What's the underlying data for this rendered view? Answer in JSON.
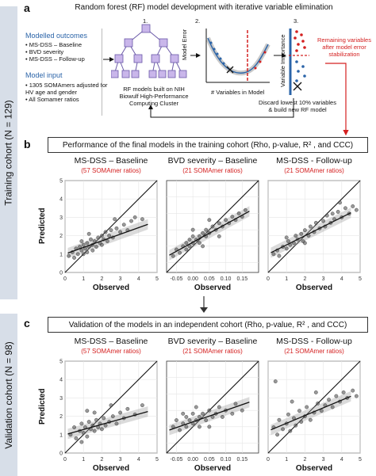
{
  "panel_a": {
    "letter": "a",
    "title": "Random forest (RF) model development with iterative variable elimination",
    "outcomes_heading": "Modelled outcomes",
    "outcomes": [
      "MS-DSS – Baseline",
      "BVD severity",
      "MS-DSS – Follow-up"
    ],
    "input_heading": "Model input",
    "inputs": [
      "1305 SOMAmers adjusted for HV age and gender",
      "All Somamer ratios"
    ],
    "step1_num": "1.",
    "step1_caption": "RF models built on NIH Biowulf High-Performance Computing Cluster",
    "step2_num": "2.",
    "step2_ylabel": "Model Error",
    "step2_xlabel": "# Variables in Model",
    "step3_num": "3.",
    "step3_ylabel": "Variable Importance",
    "step3_note": "Remaining variables after model error stabilization",
    "discard_note": "Discard lowest 10% variables & build new RF model",
    "colors": {
      "blue_text": "#2b64a8",
      "red": "#d42020",
      "node": "#c9b6ea",
      "node_border": "#6b5aa8"
    }
  },
  "training_cohort_label": "Training cohort (N = 129)",
  "validation_cohort_label": "Validation cohort (N = 98)",
  "panel_b": {
    "letter": "b",
    "title": "Performance of the final models in the training cohort (Rho, p-value, R² , and CCC)"
  },
  "panel_c": {
    "letter": "c",
    "title": "Validation of the models in an independent cohort (Rho, p-value, R² , and CCC)"
  },
  "axis_labels": {
    "predicted": "Predicted",
    "observed": "Observed"
  },
  "plots": {
    "b1": {
      "title": "MS-DSS – Baseline",
      "sub": "(57 SOMAmer ratios)",
      "rho": "Rho = 0.767 (p<2.2x10⁻¹⁶)",
      "r2": "R² = 0.618",
      "ccc": "CCC = 0.662"
    },
    "b2": {
      "title": "BVD severity – Baseline",
      "sub": "(21 SOMAmer ratios)",
      "rho": "Rho = 0.778 (p<2.2x10⁻¹⁶)",
      "r2": "R² = 0.597",
      "ccc": "CCC = 0.675"
    },
    "b3": {
      "title": "MS-DSS - Follow-up",
      "sub": "(21 SOMAmer ratios)",
      "rho": "Rho = 0.781 (p<2.2x10⁻¹⁶)",
      "r2": "R² = 0.634",
      "ccc": "CCC = 0.719"
    },
    "c1": {
      "title": "MS-DSS – Baseline",
      "sub": "(57 SOMAmer ratios)",
      "rho": "Rho = 0.395 (p=6.5x10⁻⁵)",
      "r2": "R² = 0.166",
      "ccc": "CCC = 0.306"
    },
    "c2": {
      "title": "BVD severity – Baseline",
      "sub": "(21 SOMAmer ratios)",
      "rho": "Rho = 0.470 (p=1.1x10⁻⁵)",
      "r2": "R² = 0.219",
      "ccc": "CCC = 0.400"
    },
    "c3": {
      "title": "MS-DSS - Follow-up",
      "sub": "(21 SOMAmer ratios)",
      "rho": "Rho = 0.505 (p=2.4x10⁻⁷)",
      "r2": "R² = 0.264",
      "ccc": "CCC = 0.430"
    }
  },
  "chart_data": [
    {
      "id": "b1",
      "type": "scatter",
      "title": "MS-DSS – Baseline",
      "xlabel": "Observed",
      "ylabel": "Predicted",
      "xlim": [
        0,
        5
      ],
      "ylim": [
        0,
        5
      ],
      "xticks": [
        "0",
        "1",
        "2",
        "3",
        "4",
        "5"
      ],
      "yticks": [
        "0",
        "1",
        "2",
        "3",
        "4",
        "5"
      ],
      "identity_line": true,
      "fit": {
        "intercept": 1.0,
        "slope": 0.36
      },
      "points": [
        [
          0.2,
          0.9
        ],
        [
          0.4,
          1.1
        ],
        [
          0.5,
          0.8
        ],
        [
          0.6,
          1.3
        ],
        [
          0.7,
          1.0
        ],
        [
          0.8,
          1.4
        ],
        [
          0.9,
          1.2
        ],
        [
          1.0,
          1.5
        ],
        [
          1.0,
          1.0
        ],
        [
          1.1,
          1.3
        ],
        [
          1.2,
          1.6
        ],
        [
          1.2,
          1.1
        ],
        [
          1.3,
          1.4
        ],
        [
          1.4,
          1.8
        ],
        [
          1.5,
          1.5
        ],
        [
          1.5,
          1.2
        ],
        [
          1.6,
          1.7
        ],
        [
          1.7,
          1.4
        ],
        [
          1.8,
          1.9
        ],
        [
          1.9,
          1.6
        ],
        [
          2.0,
          2.0
        ],
        [
          2.0,
          1.5
        ],
        [
          2.1,
          1.8
        ],
        [
          2.2,
          2.2
        ],
        [
          2.3,
          1.7
        ],
        [
          2.4,
          2.0
        ],
        [
          2.5,
          2.3
        ],
        [
          2.6,
          1.9
        ],
        [
          2.8,
          2.4
        ],
        [
          3.0,
          2.2
        ],
        [
          3.2,
          2.6
        ],
        [
          3.4,
          2.3
        ],
        [
          3.6,
          2.8
        ],
        [
          3.8,
          3.0
        ],
        [
          4.2,
          2.9
        ],
        [
          1.3,
          2.1
        ],
        [
          0.9,
          1.7
        ],
        [
          2.7,
          2.9
        ]
      ]
    },
    {
      "id": "b2",
      "type": "scatter",
      "title": "BVD severity – Baseline",
      "xlabel": "Observed",
      "ylabel": "",
      "xlim": [
        -0.08,
        0.2
      ],
      "ylim": [
        -0.08,
        0.2
      ],
      "xticks": [
        "-0.05",
        "0.00",
        "0.05",
        "0.10",
        "0.15"
      ],
      "yticks": [],
      "identity_line": true,
      "fit": {
        "intercept": 0.012,
        "slope": 0.55
      },
      "points": [
        [
          -0.06,
          -0.03
        ],
        [
          -0.05,
          -0.01
        ],
        [
          -0.04,
          -0.02
        ],
        [
          -0.03,
          0.0
        ],
        [
          -0.02,
          0.01
        ],
        [
          -0.02,
          -0.01
        ],
        [
          -0.01,
          0.02
        ],
        [
          0.0,
          0.01
        ],
        [
          0.0,
          0.03
        ],
        [
          0.01,
          0.02
        ],
        [
          0.02,
          0.03
        ],
        [
          0.02,
          0.01
        ],
        [
          0.03,
          0.04
        ],
        [
          0.04,
          0.03
        ],
        [
          0.04,
          0.05
        ],
        [
          0.05,
          0.04
        ],
        [
          0.06,
          0.06
        ],
        [
          0.07,
          0.05
        ],
        [
          0.08,
          0.07
        ],
        [
          0.09,
          0.06
        ],
        [
          0.1,
          0.08
        ],
        [
          0.11,
          0.07
        ],
        [
          0.12,
          0.09
        ],
        [
          0.13,
          0.08
        ],
        [
          0.14,
          0.1
        ],
        [
          0.15,
          0.09
        ],
        [
          0.16,
          0.11
        ],
        [
          0.05,
          0.08
        ],
        [
          0.0,
          0.05
        ],
        [
          0.08,
          0.03
        ],
        [
          -0.01,
          0.0
        ],
        [
          0.03,
          0.0
        ]
      ]
    },
    {
      "id": "b3",
      "type": "scatter",
      "title": "MS-DSS - Follow-up",
      "xlabel": "Observed",
      "ylabel": "",
      "xlim": [
        0,
        5
      ],
      "ylim": [
        0,
        5
      ],
      "xticks": [
        "0",
        "1",
        "2",
        "3",
        "4",
        "5"
      ],
      "yticks": [],
      "identity_line": true,
      "fit": {
        "intercept": 1.0,
        "slope": 0.5
      },
      "points": [
        [
          0.3,
          1.0
        ],
        [
          0.5,
          1.2
        ],
        [
          0.6,
          0.9
        ],
        [
          0.8,
          1.4
        ],
        [
          1.0,
          1.3
        ],
        [
          1.1,
          1.7
        ],
        [
          1.2,
          1.5
        ],
        [
          1.4,
          1.6
        ],
        [
          1.5,
          2.0
        ],
        [
          1.6,
          1.8
        ],
        [
          1.8,
          2.1
        ],
        [
          1.9,
          1.7
        ],
        [
          2.0,
          2.3
        ],
        [
          2.2,
          2.0
        ],
        [
          2.3,
          2.5
        ],
        [
          2.5,
          2.2
        ],
        [
          2.6,
          2.7
        ],
        [
          2.8,
          2.4
        ],
        [
          3.0,
          2.8
        ],
        [
          3.1,
          2.5
        ],
        [
          3.2,
          3.1
        ],
        [
          3.4,
          2.7
        ],
        [
          3.5,
          3.2
        ],
        [
          3.6,
          2.9
        ],
        [
          3.8,
          3.3
        ],
        [
          4.0,
          3.0
        ],
        [
          4.2,
          3.5
        ],
        [
          4.4,
          3.2
        ],
        [
          4.6,
          3.6
        ],
        [
          4.8,
          3.4
        ],
        [
          2.0,
          1.6
        ],
        [
          1.0,
          1.9
        ],
        [
          3.9,
          3.8
        ]
      ]
    },
    {
      "id": "c1",
      "type": "scatter",
      "title": "MS-DSS – Baseline",
      "xlabel": "Observed",
      "ylabel": "Predicted",
      "xlim": [
        0,
        5
      ],
      "ylim": [
        0,
        5
      ],
      "xticks": [
        "0",
        "1",
        "2",
        "3",
        "4",
        "5"
      ],
      "yticks": [
        "0",
        "1",
        "2",
        "3",
        "4",
        "5"
      ],
      "identity_line": true,
      "fit": {
        "intercept": 1.0,
        "slope": 0.28
      },
      "points": [
        [
          0.3,
          1.0
        ],
        [
          0.5,
          1.4
        ],
        [
          0.6,
          0.8
        ],
        [
          0.8,
          1.2
        ],
        [
          0.9,
          1.6
        ],
        [
          1.0,
          1.1
        ],
        [
          1.1,
          1.4
        ],
        [
          1.2,
          0.9
        ],
        [
          1.3,
          1.7
        ],
        [
          1.4,
          1.3
        ],
        [
          1.5,
          1.5
        ],
        [
          1.6,
          1.2
        ],
        [
          1.7,
          1.8
        ],
        [
          1.8,
          1.4
        ],
        [
          1.9,
          1.6
        ],
        [
          2.0,
          1.3
        ],
        [
          2.1,
          1.9
        ],
        [
          2.2,
          1.5
        ],
        [
          2.4,
          1.7
        ],
        [
          2.6,
          2.0
        ],
        [
          2.8,
          1.6
        ],
        [
          3.0,
          2.2
        ],
        [
          3.2,
          1.9
        ],
        [
          3.4,
          2.4
        ],
        [
          3.8,
          2.1
        ],
        [
          4.2,
          2.6
        ],
        [
          1.2,
          2.3
        ],
        [
          0.9,
          0.6
        ],
        [
          2.5,
          2.6
        ],
        [
          1.6,
          2.2
        ]
      ]
    },
    {
      "id": "c2",
      "type": "scatter",
      "title": "BVD severity – Baseline",
      "xlabel": "Observed",
      "ylabel": "",
      "xlim": [
        -0.08,
        0.2
      ],
      "ylim": [
        -0.08,
        0.2
      ],
      "xticks": [
        "-0.05",
        "0.00",
        "0.05",
        "0.10",
        "0.15"
      ],
      "yticks": [],
      "identity_line": true,
      "fit": {
        "intercept": 0.015,
        "slope": 0.35
      },
      "points": [
        [
          -0.06,
          0.0
        ],
        [
          -0.05,
          0.02
        ],
        [
          -0.04,
          -0.01
        ],
        [
          -0.03,
          0.01
        ],
        [
          -0.02,
          0.03
        ],
        [
          -0.02,
          0.0
        ],
        [
          -0.01,
          0.02
        ],
        [
          0.0,
          0.01
        ],
        [
          0.0,
          0.04
        ],
        [
          0.01,
          0.02
        ],
        [
          0.02,
          0.03
        ],
        [
          0.02,
          0.0
        ],
        [
          0.03,
          0.04
        ],
        [
          0.04,
          0.02
        ],
        [
          0.05,
          0.05
        ],
        [
          0.06,
          0.03
        ],
        [
          0.07,
          0.04
        ],
        [
          0.08,
          0.06
        ],
        [
          0.09,
          0.03
        ],
        [
          0.1,
          0.05
        ],
        [
          0.12,
          0.04
        ],
        [
          0.13,
          0.07
        ],
        [
          0.15,
          0.05
        ],
        [
          0.01,
          0.06
        ],
        [
          -0.03,
          0.04
        ],
        [
          0.05,
          0.0
        ]
      ]
    },
    {
      "id": "c3",
      "type": "scatter",
      "title": "MS-DSS - Follow-up",
      "xlabel": "Observed",
      "ylabel": "",
      "xlim": [
        0,
        5
      ],
      "ylim": [
        0,
        5
      ],
      "xticks": [
        "0",
        "1",
        "2",
        "3",
        "4",
        "5"
      ],
      "yticks": [],
      "identity_line": true,
      "fit": {
        "intercept": 1.2,
        "slope": 0.42
      },
      "points": [
        [
          0.3,
          1.4
        ],
        [
          0.5,
          1.0
        ],
        [
          0.6,
          1.8
        ],
        [
          0.8,
          1.3
        ],
        [
          1.0,
          1.6
        ],
        [
          1.1,
          2.1
        ],
        [
          1.2,
          1.2
        ],
        [
          1.4,
          1.9
        ],
        [
          1.5,
          1.5
        ],
        [
          1.7,
          2.3
        ],
        [
          1.8,
          1.7
        ],
        [
          2.0,
          2.0
        ],
        [
          2.1,
          2.5
        ],
        [
          2.3,
          1.8
        ],
        [
          2.5,
          2.2
        ],
        [
          2.7,
          2.7
        ],
        [
          2.9,
          2.3
        ],
        [
          3.1,
          2.6
        ],
        [
          3.3,
          2.9
        ],
        [
          3.5,
          2.5
        ],
        [
          3.7,
          3.1
        ],
        [
          3.9,
          2.8
        ],
        [
          4.1,
          3.3
        ],
        [
          4.3,
          3.0
        ],
        [
          4.6,
          3.4
        ],
        [
          4.8,
          3.1
        ],
        [
          0.4,
          3.9
        ],
        [
          1.3,
          2.8
        ],
        [
          2.6,
          3.3
        ]
      ]
    }
  ]
}
